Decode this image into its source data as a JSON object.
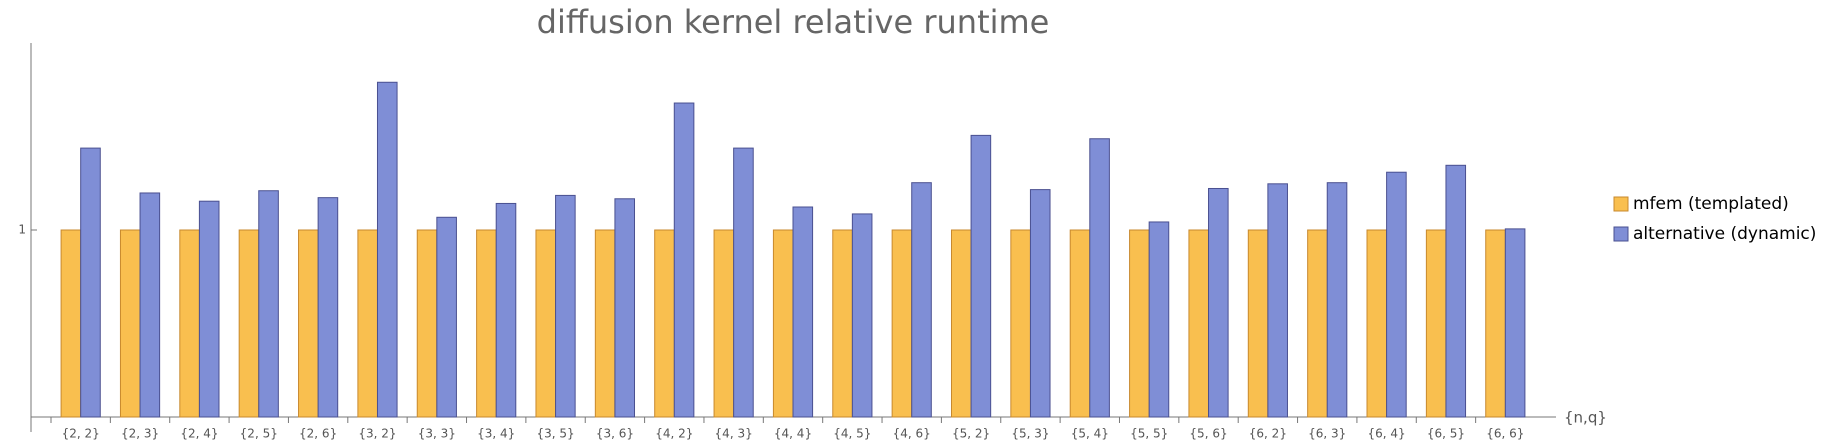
{
  "chart_data": {
    "type": "bar",
    "title": "diffusion kernel relative runtime",
    "x_label": "{n,q}",
    "categories": [
      "{2, 2}",
      "{2, 3}",
      "{2, 4}",
      "{2, 5}",
      "{2, 6}",
      "{3, 2}",
      "{3, 3}",
      "{3, 4}",
      "{3, 5}",
      "{3, 6}",
      "{4, 2}",
      "{4, 3}",
      "{4, 4}",
      "{4, 5}",
      "{4, 6}",
      "{5, 2}",
      "{5, 3}",
      "{5, 4}",
      "{5, 5}",
      "{5, 6}",
      "{6, 2}",
      "{6, 3}",
      "{6, 4}",
      "{6, 5}",
      "{6, 6}"
    ],
    "series": [
      {
        "name": "mfem (templated)",
        "color": "#f9bf4f",
        "values": [
          1,
          1,
          1,
          1,
          1,
          1,
          1,
          1,
          1,
          1,
          1,
          1,
          1,
          1,
          1,
          1,
          1,
          1,
          1,
          1,
          1,
          1,
          1,
          1,
          1
        ]
      },
      {
        "name": "alternative (dynamic)",
        "color": "#7f8ed6",
        "values": [
          1.438,
          1.198,
          1.154,
          1.21,
          1.173,
          1.79,
          1.068,
          1.142,
          1.185,
          1.167,
          1.679,
          1.438,
          1.123,
          1.086,
          1.253,
          1.506,
          1.216,
          1.488,
          1.043,
          1.222,
          1.247,
          1.253,
          1.309,
          1.346,
          1.006
        ]
      }
    ],
    "ylim": [
      0,
      2
    ],
    "yticks": [
      1
    ],
    "legend": "right"
  }
}
